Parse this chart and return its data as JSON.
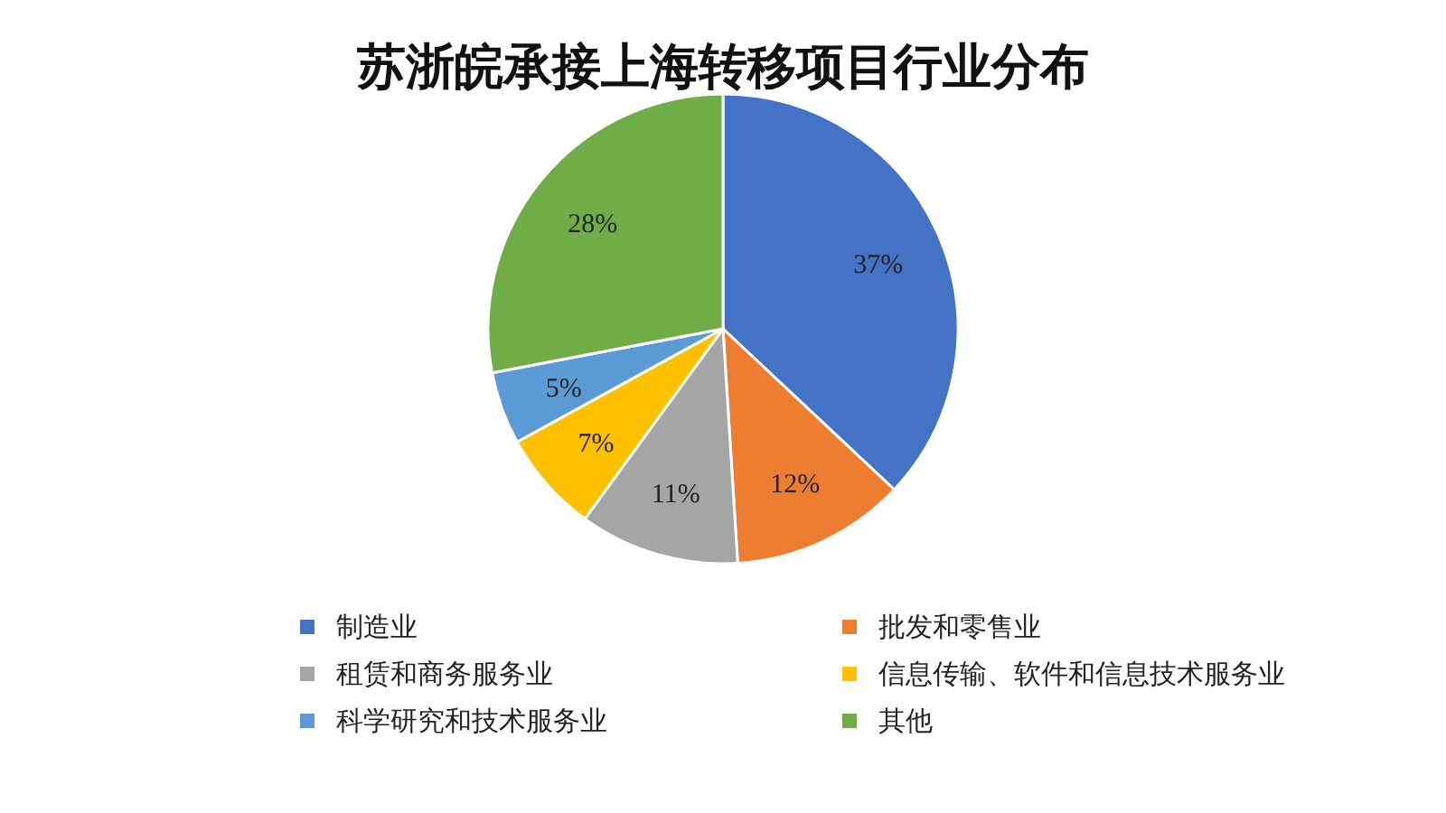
{
  "chart_data": {
    "type": "pie",
    "title": "苏浙皖承接上海转移项目行业分布",
    "categories": [
      "制造业",
      "批发和零售业",
      "租赁和商务服务业",
      "信息传输、软件和信息技术服务业",
      "科学研究和技术服务业",
      "其他"
    ],
    "values": [
      37,
      12,
      11,
      7,
      5,
      28
    ],
    "colors": [
      "#4472c4",
      "#ed7d31",
      "#a5a5a5",
      "#ffc000",
      "#5b9bd5",
      "#70ad47"
    ],
    "value_labels": [
      "37%",
      "12%",
      "11%",
      "7%",
      "5%",
      "28%"
    ],
    "legend": "bottom"
  }
}
